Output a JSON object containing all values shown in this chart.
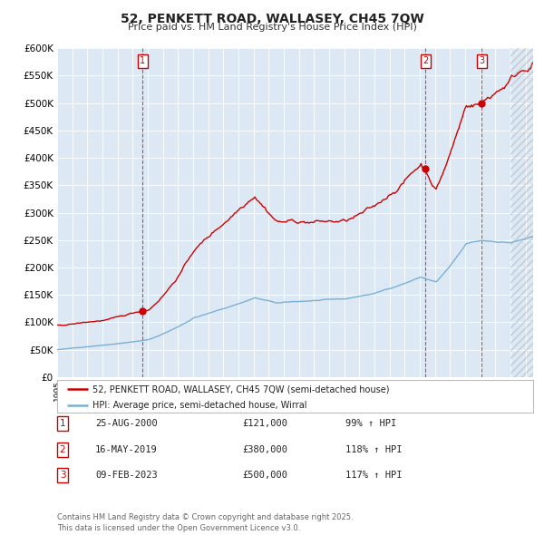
{
  "title": "52, PENKETT ROAD, WALLASEY, CH45 7QW",
  "subtitle": "Price paid vs. HM Land Registry's House Price Index (HPI)",
  "bg_color": "#dce9f5",
  "red_line_color": "#cc0000",
  "blue_line_color": "#7ab0d4",
  "vline_color": "#cc0000",
  "ylim": [
    0,
    600000
  ],
  "yticks": [
    0,
    50000,
    100000,
    150000,
    200000,
    250000,
    300000,
    350000,
    400000,
    450000,
    500000,
    550000,
    600000
  ],
  "transactions": [
    {
      "date_num": 2000.65,
      "price": 121000,
      "label": "1"
    },
    {
      "date_num": 2019.37,
      "price": 380000,
      "label": "2"
    },
    {
      "date_num": 2023.11,
      "price": 500000,
      "label": "3"
    }
  ],
  "legend_red": "52, PENKETT ROAD, WALLASEY, CH45 7QW (semi-detached house)",
  "legend_blue": "HPI: Average price, semi-detached house, Wirral",
  "table_rows": [
    {
      "num": "1",
      "date": "25-AUG-2000",
      "price": "£121,000",
      "hpi": "99% ↑ HPI"
    },
    {
      "num": "2",
      "date": "16-MAY-2019",
      "price": "£380,000",
      "hpi": "118% ↑ HPI"
    },
    {
      "num": "3",
      "date": "09-FEB-2023",
      "price": "£500,000",
      "hpi": "117% ↑ HPI"
    }
  ],
  "footer": "Contains HM Land Registry data © Crown copyright and database right 2025.\nThis data is licensed under the Open Government Licence v3.0.",
  "xmin": 1995.0,
  "xmax": 2026.5
}
